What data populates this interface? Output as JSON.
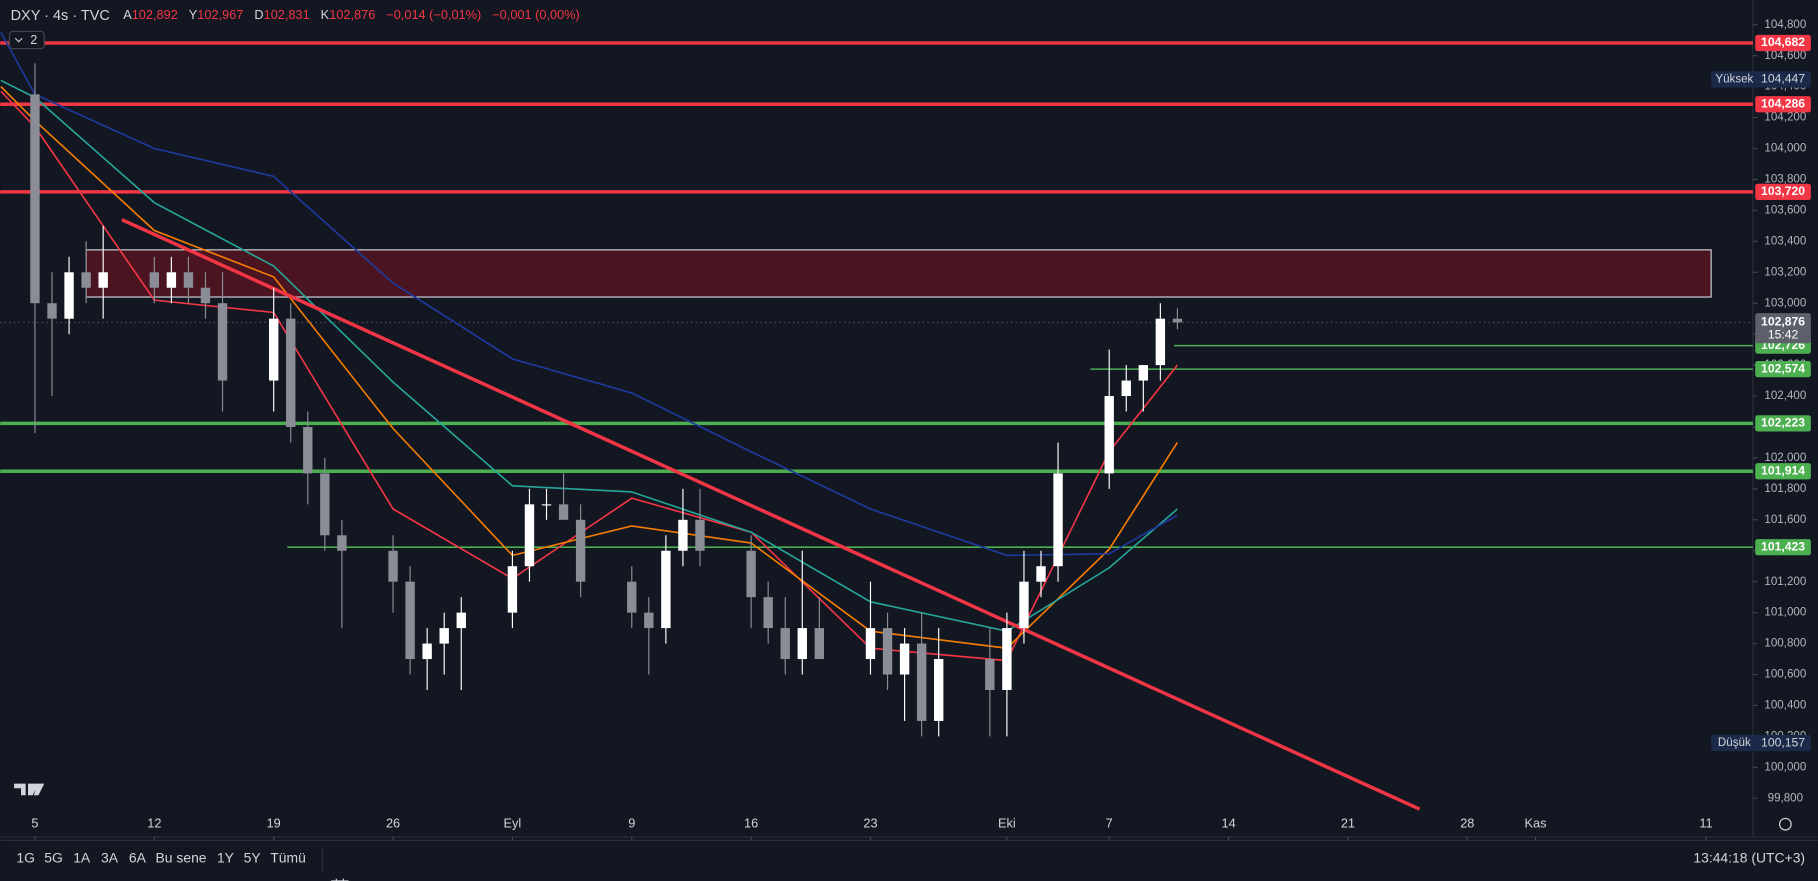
{
  "header": {
    "symbol": "DXY · 4s · TVC",
    "open_key": "A",
    "open": "102,892",
    "high_key": "Y",
    "high": "102,967",
    "low_key": "D",
    "low": "102,831",
    "close_key": "K",
    "close": "102,876",
    "change": "−0,014 (−0,01%)",
    "change2": "−0,001 (0,00%)",
    "indicators": "2"
  },
  "toolbar": {
    "ranges": [
      "1G",
      "5G",
      "1A",
      "3A",
      "6A",
      "Bu sene",
      "1Y",
      "5Y",
      "Tümü"
    ],
    "clock": "13:44:18 (UTC+3)"
  },
  "chart_data": {
    "type": "candlestick",
    "up_color": "#ffffff",
    "down_color": "#8a8d96",
    "xlim": [
      -2.04,
      100.75
    ],
    "ylim": [
      99.55,
      104.96
    ],
    "xticks": [
      {
        "value": 0,
        "label": "5"
      },
      {
        "value": 7,
        "label": "12"
      },
      {
        "value": 14,
        "label": "19"
      },
      {
        "value": 21,
        "label": "26"
      },
      {
        "value": 28,
        "label": "Eyl"
      },
      {
        "value": 35,
        "label": "9"
      },
      {
        "value": 42,
        "label": "16"
      },
      {
        "value": 49,
        "label": "23"
      },
      {
        "value": 57,
        "label": "Eki"
      },
      {
        "value": 63,
        "label": "7"
      },
      {
        "value": 70,
        "label": "14"
      },
      {
        "value": 77,
        "label": "21"
      },
      {
        "value": 84,
        "label": "28"
      },
      {
        "value": 88,
        "label": "Kas"
      },
      {
        "value": 98,
        "label": "11"
      }
    ],
    "yticks": [
      {
        "value": 99.8,
        "label": "99,800"
      },
      {
        "value": 100.0,
        "label": "100,000"
      },
      {
        "value": 100.2,
        "label": "100,200"
      },
      {
        "value": 100.4,
        "label": "100,400"
      },
      {
        "value": 100.6,
        "label": "100,600"
      },
      {
        "value": 100.8,
        "label": "100,800"
      },
      {
        "value": 101.0,
        "label": "101,000"
      },
      {
        "value": 101.2,
        "label": "101,200"
      },
      {
        "value": 101.4,
        "label": "101,400"
      },
      {
        "value": 101.6,
        "label": "101,600"
      },
      {
        "value": 101.8,
        "label": "101,800"
      },
      {
        "value": 102.0,
        "label": "102,000"
      },
      {
        "value": 102.2,
        "label": "102,200"
      },
      {
        "value": 102.4,
        "label": "102,400"
      },
      {
        "value": 102.6,
        "label": "102,600"
      },
      {
        "value": 102.8,
        "label": "102,800"
      },
      {
        "value": 103.0,
        "label": "103,000"
      },
      {
        "value": 103.2,
        "label": "103,200"
      },
      {
        "value": 103.4,
        "label": "103,400"
      },
      {
        "value": 103.6,
        "label": "103,600"
      },
      {
        "value": 103.8,
        "label": "103,800"
      },
      {
        "value": 104.0,
        "label": "104,000"
      },
      {
        "value": 104.2,
        "label": "104,200"
      },
      {
        "value": 104.4,
        "label": "104,400"
      },
      {
        "value": 104.6,
        "label": "104,600"
      },
      {
        "value": 104.8,
        "label": "104,800"
      }
    ],
    "x": [
      0,
      1,
      2,
      3,
      4,
      7,
      8,
      9,
      10,
      11,
      14,
      15,
      16,
      17,
      18,
      21,
      22,
      23,
      24,
      25,
      28,
      29,
      30,
      31,
      32,
      35,
      36,
      37,
      38,
      39,
      42,
      43,
      44,
      45,
      46,
      49,
      50,
      51,
      52,
      53,
      56,
      57,
      58,
      59,
      60,
      63,
      64,
      65,
      66,
      67
    ],
    "open": [
      104.35,
      103.0,
      102.9,
      103.2,
      103.1,
      103.2,
      103.1,
      103.2,
      103.1,
      103.0,
      102.5,
      102.9,
      102.2,
      101.9,
      101.5,
      101.4,
      101.2,
      100.7,
      100.8,
      100.9,
      101.0,
      101.3,
      101.7,
      101.7,
      101.6,
      101.2,
      101.0,
      100.9,
      101.4,
      101.6,
      101.4,
      101.1,
      100.9,
      100.7,
      100.9,
      100.7,
      100.9,
      100.6,
      100.8,
      100.3,
      100.7,
      100.5,
      100.9,
      101.2,
      101.3,
      101.9,
      102.4,
      102.5,
      102.6,
      102.9
    ],
    "high": [
      104.55,
      103.2,
      103.3,
      103.4,
      103.5,
      103.3,
      103.3,
      103.3,
      103.2,
      103.2,
      103.1,
      103.0,
      102.3,
      102.0,
      101.6,
      101.5,
      101.3,
      100.9,
      101.0,
      101.1,
      101.4,
      101.8,
      101.8,
      101.9,
      101.7,
      101.3,
      101.1,
      101.5,
      101.8,
      101.8,
      101.5,
      101.2,
      101.1,
      101.4,
      101.1,
      101.2,
      101.0,
      100.9,
      101.0,
      100.9,
      100.9,
      101.0,
      101.4,
      101.4,
      102.1,
      102.7,
      102.6,
      102.6,
      103.0,
      102.967
    ],
    "low": [
      102.16,
      102.4,
      102.8,
      103.0,
      102.9,
      103.0,
      103.0,
      103.0,
      102.9,
      102.3,
      102.3,
      102.1,
      101.7,
      101.4,
      100.9,
      101.0,
      100.6,
      100.5,
      100.6,
      100.5,
      100.9,
      101.2,
      101.6,
      101.6,
      101.1,
      100.9,
      100.6,
      100.8,
      101.3,
      101.3,
      100.9,
      100.8,
      100.6,
      100.6,
      100.7,
      100.6,
      100.5,
      100.3,
      100.2,
      100.2,
      100.2,
      100.2,
      100.8,
      101.1,
      101.2,
      101.8,
      102.3,
      102.3,
      102.5,
      102.831
    ],
    "close": [
      103.0,
      102.9,
      103.2,
      103.1,
      103.2,
      103.1,
      103.2,
      103.1,
      103.0,
      102.5,
      102.9,
      102.2,
      101.9,
      101.5,
      101.4,
      101.2,
      100.7,
      100.8,
      100.9,
      101.0,
      101.3,
      101.7,
      101.7,
      101.6,
      101.2,
      101.0,
      100.9,
      101.4,
      101.6,
      101.4,
      101.1,
      100.9,
      100.7,
      100.9,
      100.7,
      100.9,
      100.6,
      100.8,
      100.3,
      100.7,
      100.5,
      100.9,
      101.2,
      101.3,
      101.9,
      102.4,
      102.5,
      102.6,
      102.9,
      102.876
    ],
    "ma_x": [
      -2,
      0,
      7,
      14,
      21,
      28,
      35,
      42,
      49,
      57,
      63,
      67
    ],
    "ma": [
      {
        "color": "#f23645",
        "values": [
          104.37,
          104.14,
          103.02,
          102.94,
          101.67,
          101.22,
          101.74,
          101.52,
          100.77,
          100.69,
          102.04,
          102.6
        ]
      },
      {
        "color": "#f57c00",
        "values": [
          104.4,
          104.18,
          103.47,
          103.17,
          102.19,
          101.37,
          101.56,
          101.45,
          100.88,
          100.77,
          101.41,
          102.1
        ]
      },
      {
        "color": "#26a69a",
        "values": [
          104.44,
          104.33,
          103.65,
          103.24,
          102.49,
          101.82,
          101.78,
          101.52,
          101.07,
          100.88,
          101.29,
          101.67
        ]
      },
      {
        "color": "#1e3a9e",
        "values": [
          104.75,
          104.35,
          104.0,
          103.82,
          103.13,
          102.64,
          102.42,
          102.04,
          101.67,
          101.37,
          101.38,
          101.63
        ]
      }
    ],
    "levels": [
      {
        "value": 104.682,
        "label": "104,682",
        "color": "#f23645",
        "style": "thick"
      },
      {
        "value": 104.286,
        "label": "104,286",
        "color": "#f23645",
        "style": "thick"
      },
      {
        "value": 103.72,
        "label": "103,720",
        "color": "#f23645",
        "style": "thick"
      },
      {
        "value": 102.726,
        "label": "102,726",
        "color": "#4caf50",
        "style": "thin",
        "start": 66.8
      },
      {
        "value": 102.574,
        "label": "102,574",
        "color": "#4caf50",
        "style": "thin",
        "start": 61.9
      },
      {
        "value": 102.223,
        "label": "102,223",
        "color": "#4caf50",
        "style": "thick"
      },
      {
        "value": 101.914,
        "label": "101,914",
        "color": "#4caf50",
        "style": "thick"
      },
      {
        "value": 101.423,
        "label": "101,423",
        "color": "#4caf50",
        "style": "thin",
        "start": 14.8
      }
    ],
    "zone": {
      "x": [
        3,
        98.3
      ],
      "y": [
        103.04,
        103.345
      ],
      "color": "#4a1520"
    },
    "trendline": {
      "x": [
        5.1,
        81.2
      ],
      "y": [
        103.54,
        99.73
      ],
      "color": "#f23645"
    },
    "last": {
      "value": 102.876,
      "label": "102,876",
      "countdown": "15:42"
    },
    "high_marker": {
      "name": "Yüksek",
      "value": 104.447,
      "label": "104,447"
    },
    "low_marker": {
      "name": "Düşük",
      "value": 100.157,
      "label": "100,157"
    }
  }
}
